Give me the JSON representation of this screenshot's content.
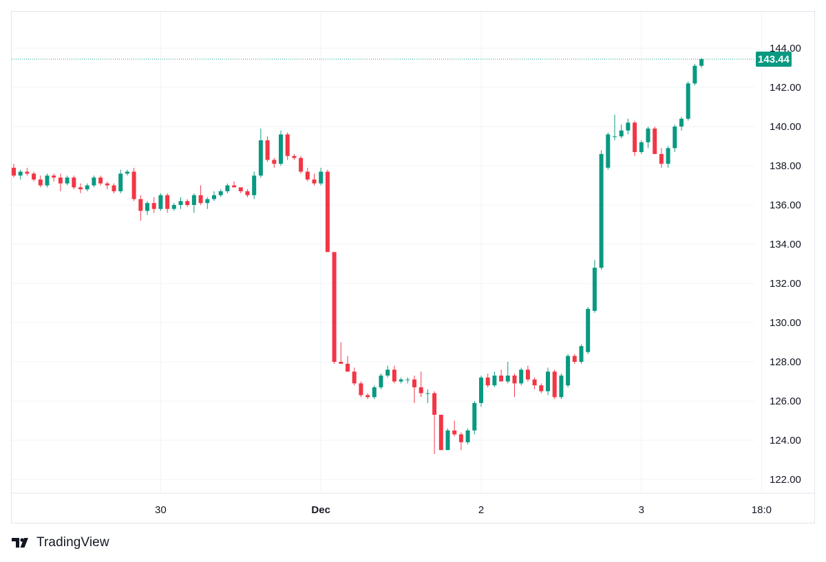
{
  "chart_data": {
    "type": "candlestick",
    "y_ticks": [
      "122.00",
      "124.00",
      "126.00",
      "128.00",
      "130.00",
      "132.00",
      "134.00",
      "136.00",
      "138.00",
      "140.00",
      "142.00",
      "144.00"
    ],
    "ylim": [
      121.3,
      145.0
    ],
    "x_ticks": [
      {
        "label": "30",
        "index": 22,
        "bold": false
      },
      {
        "label": "Dec",
        "index": 46,
        "bold": true
      },
      {
        "label": "2",
        "index": 70,
        "bold": false
      },
      {
        "label": "3",
        "index": 94,
        "bold": false
      },
      {
        "label": "18:0",
        "index": 112,
        "bold": false
      }
    ],
    "last_price": {
      "label": "143.44",
      "value": 143.44
    },
    "grid": true,
    "up_color": "#089981",
    "down_color": "#f23645",
    "candles": [
      [
        137.9,
        138.1,
        137.4,
        137.5
      ],
      [
        137.5,
        137.8,
        137.3,
        137.7
      ],
      [
        137.7,
        137.9,
        137.5,
        137.6
      ],
      [
        137.6,
        137.7,
        137.2,
        137.3
      ],
      [
        137.3,
        137.5,
        136.9,
        137.0
      ],
      [
        137.0,
        137.6,
        136.9,
        137.5
      ],
      [
        137.5,
        137.6,
        137.2,
        137.4
      ],
      [
        137.4,
        137.6,
        136.7,
        137.1
      ],
      [
        137.1,
        137.5,
        137.0,
        137.4
      ],
      [
        137.4,
        137.5,
        136.8,
        136.9
      ],
      [
        136.9,
        137.1,
        136.6,
        136.8
      ],
      [
        136.8,
        137.1,
        136.7,
        137.0
      ],
      [
        137.0,
        137.5,
        136.9,
        137.4
      ],
      [
        137.4,
        137.5,
        137.0,
        137.1
      ],
      [
        137.1,
        137.2,
        136.8,
        137.0
      ],
      [
        137.0,
        137.1,
        136.6,
        136.7
      ],
      [
        136.7,
        137.8,
        136.6,
        137.6
      ],
      [
        137.6,
        137.8,
        137.5,
        137.7
      ],
      [
        137.7,
        137.9,
        136.2,
        136.3
      ],
      [
        136.3,
        136.5,
        135.2,
        135.7
      ],
      [
        135.7,
        136.2,
        135.5,
        136.1
      ],
      [
        136.1,
        136.4,
        135.6,
        135.8
      ],
      [
        135.8,
        136.6,
        135.7,
        136.5
      ],
      [
        136.5,
        136.6,
        135.6,
        135.8
      ],
      [
        135.8,
        136.1,
        135.7,
        136.0
      ],
      [
        136.0,
        136.4,
        135.8,
        136.2
      ],
      [
        136.2,
        136.3,
        135.9,
        136.0
      ],
      [
        136.0,
        136.6,
        135.6,
        136.5
      ],
      [
        136.5,
        137.0,
        136.0,
        136.1
      ],
      [
        136.1,
        136.4,
        135.8,
        136.3
      ],
      [
        136.3,
        136.7,
        136.2,
        136.5
      ],
      [
        136.5,
        136.8,
        136.4,
        136.7
      ],
      [
        136.7,
        137.1,
        136.6,
        137.0
      ],
      [
        137.0,
        137.2,
        136.9,
        136.9
      ],
      [
        136.9,
        136.9,
        136.6,
        136.7
      ],
      [
        136.7,
        136.8,
        136.4,
        136.5
      ],
      [
        136.5,
        137.7,
        136.3,
        137.5
      ],
      [
        137.5,
        139.9,
        137.4,
        139.3
      ],
      [
        139.3,
        139.5,
        138.2,
        138.3
      ],
      [
        138.3,
        138.4,
        137.9,
        138.1
      ],
      [
        138.1,
        139.8,
        138.0,
        139.6
      ],
      [
        139.6,
        139.7,
        138.3,
        138.5
      ],
      [
        138.5,
        138.6,
        138.3,
        138.4
      ],
      [
        138.4,
        138.5,
        137.6,
        137.7
      ],
      [
        137.7,
        137.9,
        137.2,
        137.3
      ],
      [
        137.3,
        137.6,
        137.0,
        137.1
      ],
      [
        137.1,
        137.9,
        137.0,
        137.7
      ],
      [
        137.7,
        137.8,
        133.6,
        133.6
      ],
      [
        133.6,
        133.6,
        127.9,
        128.0
      ],
      [
        128.0,
        129.0,
        127.9,
        127.9
      ],
      [
        127.9,
        128.3,
        127.6,
        127.5
      ],
      [
        127.5,
        127.7,
        126.8,
        126.9
      ],
      [
        126.9,
        127.0,
        126.2,
        126.3
      ],
      [
        126.3,
        126.4,
        126.1,
        126.2
      ],
      [
        126.2,
        126.8,
        126.1,
        126.7
      ],
      [
        126.7,
        127.4,
        126.6,
        127.3
      ],
      [
        127.3,
        127.8,
        127.2,
        127.6
      ],
      [
        127.6,
        127.8,
        126.9,
        127.0
      ],
      [
        127.0,
        127.2,
        126.9,
        127.1
      ],
      [
        127.1,
        127.2,
        126.9,
        127.1
      ],
      [
        127.1,
        127.3,
        125.9,
        126.7
      ],
      [
        126.7,
        127.5,
        126.2,
        126.4
      ],
      [
        126.4,
        126.6,
        125.9,
        126.4
      ],
      [
        126.4,
        126.5,
        123.3,
        125.3
      ],
      [
        125.3,
        125.3,
        123.5,
        123.5
      ],
      [
        123.5,
        124.6,
        123.5,
        124.5
      ],
      [
        124.5,
        125.0,
        124.2,
        124.3
      ],
      [
        124.3,
        124.4,
        123.5,
        123.9
      ],
      [
        123.9,
        124.6,
        123.8,
        124.5
      ],
      [
        124.5,
        126.0,
        124.3,
        125.9
      ],
      [
        125.9,
        127.3,
        125.7,
        127.2
      ],
      [
        127.2,
        127.4,
        126.7,
        126.8
      ],
      [
        126.8,
        127.5,
        126.7,
        127.3
      ],
      [
        127.3,
        127.6,
        127.0,
        127.0
      ],
      [
        127.0,
        128.0,
        126.9,
        127.3
      ],
      [
        127.3,
        127.4,
        126.2,
        126.9
      ],
      [
        126.9,
        127.7,
        126.8,
        127.6
      ],
      [
        127.6,
        127.8,
        127.0,
        127.1
      ],
      [
        127.1,
        127.2,
        126.6,
        126.8
      ],
      [
        126.8,
        126.9,
        126.4,
        126.5
      ],
      [
        126.5,
        127.7,
        126.3,
        127.5
      ],
      [
        127.5,
        127.6,
        126.1,
        126.2
      ],
      [
        126.2,
        127.4,
        126.1,
        127.3
      ],
      [
        126.8,
        128.4,
        126.7,
        128.3
      ],
      [
        128.3,
        128.4,
        127.9,
        128.0
      ],
      [
        128.0,
        128.9,
        127.9,
        128.8
      ],
      [
        128.5,
        130.8,
        128.4,
        130.7
      ],
      [
        130.6,
        133.2,
        130.5,
        132.8
      ],
      [
        132.8,
        138.8,
        132.7,
        138.6
      ],
      [
        137.9,
        139.7,
        137.8,
        139.6
      ],
      [
        139.5,
        140.6,
        139.3,
        139.5
      ],
      [
        139.5,
        140.1,
        139.4,
        139.8
      ],
      [
        139.8,
        140.4,
        139.6,
        140.2
      ],
      [
        140.2,
        140.3,
        138.5,
        138.7
      ],
      [
        138.7,
        139.3,
        138.6,
        139.2
      ],
      [
        139.2,
        140.0,
        138.9,
        139.9
      ],
      [
        139.9,
        140.0,
        138.7,
        138.6
      ],
      [
        138.6,
        138.9,
        137.9,
        138.1
      ],
      [
        138.1,
        139.0,
        137.9,
        138.9
      ],
      [
        138.9,
        140.1,
        138.7,
        140.0
      ],
      [
        140.0,
        140.5,
        139.8,
        140.4
      ],
      [
        140.4,
        142.3,
        140.3,
        142.2
      ],
      [
        142.2,
        143.2,
        142.1,
        143.1
      ],
      [
        143.1,
        143.5,
        143.0,
        143.44
      ]
    ]
  },
  "brand": {
    "name": "TradingView"
  }
}
